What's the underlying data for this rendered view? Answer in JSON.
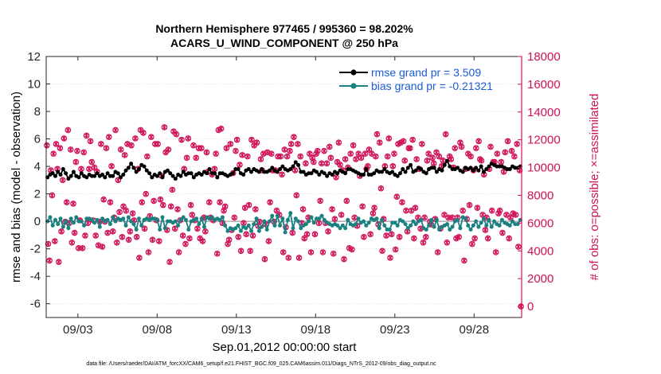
{
  "chart_data": {
    "type": "line",
    "title_line1": "Northern Hemisphere 977465 / 995360 = 98.202%",
    "title_line2": "ACARS_U_WIND_COMPONENT @ 250 hPa",
    "xlabel": "Sep.01,2012 00:00:00 start",
    "ylabel_left": "rmse and bias (model - observation)",
    "ylabel_right": "# of obs: o=possible; ×=assimilated",
    "footer": "data file: /Users/raeder/DAI/ATM_forcXX/CAM6_setup/f.e21.FHIST_BGC.f09_025.CAM6assim.011/Diags_NTrS_2012-09/obs_diag_output.nc",
    "xlim": [
      1.0,
      31.0
    ],
    "x_ticks": [
      3,
      8,
      13,
      18,
      23,
      28
    ],
    "x_tick_labels": [
      "09/03",
      "09/08",
      "09/13",
      "09/18",
      "09/23",
      "09/28"
    ],
    "ylim_left": [
      -7,
      12
    ],
    "y_ticks_left": [
      -6,
      -4,
      -2,
      0,
      2,
      4,
      6,
      8,
      10,
      12
    ],
    "ylim_right": [
      -800,
      18000
    ],
    "y_ticks_right": [
      0,
      2000,
      4000,
      6000,
      8000,
      10000,
      12000,
      14000,
      16000,
      18000
    ],
    "zero_line": 0,
    "grid": "horizontal dotted",
    "legend_position": "top-right",
    "legend": [
      "rmse grand pr = 3.509",
      "bias grand pr = -0.21321"
    ],
    "colors": {
      "rmse": "#000000",
      "bias": "#1a8080",
      "obs": "#d01058",
      "legend_text": "#1a5bd6",
      "zero": "#b4b4b4"
    },
    "series": [
      {
        "name": "rmse",
        "axis": "left",
        "values": [
          3.2,
          3.4,
          3.5,
          3.3,
          3.6,
          3.4,
          3.8,
          3.5,
          3.1,
          3.3,
          3.6,
          3.3,
          3.2,
          3.5,
          3.3,
          3.2,
          3.4,
          3.3,
          3.3,
          3.5,
          3.3,
          3.4,
          3.2,
          3.5,
          3.3,
          3.3,
          3.6,
          3.5,
          3.2,
          3.4,
          3.7,
          3.9,
          4.2,
          3.9,
          3.6,
          3.8,
          4.1,
          4.0,
          3.7,
          3.5,
          3.2,
          3.4,
          3.3,
          3.5,
          3.2,
          3.6,
          3.7,
          3.5,
          3.3,
          3.1,
          3.4,
          3.3,
          3.6,
          3.4,
          3.5,
          3.5,
          3.2,
          3.4,
          3.5,
          3.4,
          3.6,
          3.5,
          3.8,
          3.5,
          3.5,
          3.2,
          3.5,
          3.5,
          3.4,
          3.3,
          3.4,
          3.5,
          3.8,
          3.8,
          3.5,
          3.4,
          3.7,
          3.8,
          3.6,
          3.8,
          3.7,
          3.6,
          3.8,
          3.6,
          3.6,
          3.7,
          3.9,
          3.7,
          3.6,
          3.8,
          4.0,
          3.8,
          3.7,
          3.8,
          4.0,
          4.3,
          4.1,
          3.6,
          3.6,
          3.4,
          3.5,
          3.5,
          3.7,
          3.6,
          3.4,
          3.6,
          3.5,
          3.3,
          3.5,
          3.4,
          3.6,
          3.5,
          3.7,
          3.6,
          3.5,
          3.8,
          3.8,
          3.7,
          3.6,
          3.5,
          3.4,
          3.4,
          3.8,
          3.4,
          3.4,
          3.5,
          3.7,
          3.6,
          3.6,
          3.8,
          3.6,
          3.5,
          3.6,
          3.4,
          3.3,
          3.5,
          3.8,
          3.6,
          3.9,
          4.1,
          3.6,
          3.7,
          3.9,
          3.8,
          3.6,
          3.5,
          3.8,
          3.9,
          3.9,
          3.6,
          3.8,
          3.7,
          4.1,
          4.4,
          4.0,
          3.8,
          3.8,
          3.9,
          3.7,
          3.6,
          3.9,
          3.8,
          3.9,
          3.7,
          3.9,
          3.7,
          4.0,
          3.6,
          3.8,
          4.0,
          4.2,
          4.1,
          4.0,
          4.0,
          4.0,
          3.9,
          3.8,
          3.8,
          4.0,
          3.9,
          3.9,
          4.0
        ]
      },
      {
        "name": "bias",
        "axis": "left",
        "values": [
          0.0,
          0.3,
          -0.3,
          0.1,
          -0.2,
          0.2,
          -0.4,
          0.0,
          -0.5,
          0.2,
          -0.1,
          0.3,
          0.0,
          0.0,
          -0.3,
          0.2,
          0.2,
          0.1,
          -0.1,
          0.1,
          -0.4,
          0.2,
          0.0,
          0.1,
          -0.2,
          0.3,
          0.0,
          0.2,
          0.1,
          0.2,
          -0.3,
          0.3,
          0.0,
          -0.2,
          -0.6,
          0.2,
          -0.3,
          0.1,
          0.2,
          0.1,
          0.2,
          0.2,
          0.1,
          -0.6,
          0.3,
          -0.5,
          0.0,
          0.0,
          -0.1,
          0.0,
          -0.3,
          0.1,
          0.3,
          0.1,
          -0.6,
          0.0,
          0.1,
          0.2,
          -0.2,
          0.2,
          -0.4,
          0.3,
          0.2,
          0.3,
          0.1,
          0.2,
          0.1,
          0.3,
          -0.3,
          -0.7,
          -0.5,
          -0.6,
          -0.5,
          -0.3,
          -0.7,
          -0.4,
          -0.5,
          -0.3,
          -0.7,
          -0.2,
          0.2,
          -0.7,
          -0.4,
          0.0,
          -0.6,
          0.0,
          0.4,
          -0.3,
          0.4,
          -0.3,
          0.2,
          -0.8,
          0.1,
          0.6,
          -0.5,
          0.2,
          0.0,
          -0.5,
          -0.3,
          -0.2,
          0.0,
          0.3,
          -0.1,
          0.2,
          0.2,
          0.4,
          0.1,
          -0.1,
          -0.2,
          -0.3,
          -0.2,
          -0.3,
          -0.5,
          -0.3,
          -0.5,
          0.1,
          -0.2,
          -0.3,
          -0.2,
          0.2,
          -0.1,
          0.0,
          -0.3,
          -0.1,
          0.2,
          0.1,
          0.2,
          -0.5,
          0.1,
          -0.3,
          -0.6,
          -0.6,
          -0.1,
          -0.1,
          -0.3,
          0.1,
          0.0,
          -0.2,
          -0.5,
          -0.3,
          0.0,
          -0.2,
          0.0,
          0.1,
          -0.5,
          -0.6,
          -0.3,
          0.1,
          -0.4,
          0.1,
          -0.6,
          -0.4,
          -0.3,
          -0.2,
          -0.6,
          -0.4,
          0.0,
          0.1,
          -0.5,
          0.3,
          0.2,
          -0.3,
          -0.6,
          -0.3,
          0.0,
          -0.4,
          -0.1,
          0.2,
          -0.3,
          0.1,
          -0.4,
          0.0,
          -0.2,
          -0.3,
          0.1,
          -0.1,
          -0.2,
          -0.3,
          0.0,
          -0.2,
          -0.2,
          0.1
        ]
      },
      {
        "name": "obs_count",
        "axis": "right",
        "values": [
          11600,
          4500,
          3300,
          9800,
          8000,
          11000,
          4700,
          11700,
          9900,
          3200,
          11400,
          5400,
          9100,
          12100,
          6100,
          7500,
          12700,
          6000,
          11300,
          4600,
          7400,
          5300,
          10400,
          11200,
          4200,
          6200,
          9900,
          4200,
          11100,
          5100,
          12300,
          6000,
          9900,
          11900,
          10400,
          6200,
          10000,
          5100,
          9700,
          4400,
          6100,
          11700,
          4300,
          7700,
          6100,
          11400,
          5300,
          12200,
          7500,
          10100,
          5400,
          6400,
          12700,
          4600,
          9100,
          6800,
          11300,
          5000,
          7200,
          10900,
          6900,
          11700,
          4800,
          5400,
          11600,
          6700,
          6200,
          12100,
          5000,
          9900,
          3500,
          12700,
          7500,
          12500,
          5600,
          8100,
          10800,
          3900,
          6500,
          12200,
          4800,
          7600,
          11700,
          6200,
          11700,
          4700,
          7700,
          9400,
          7300,
          12900,
          11100,
          5500,
          11300,
          3200,
          7200,
          8400,
          12600,
          5600,
          12400,
          7000,
          3900,
          6200,
          12000,
          5100,
          9900,
          4500,
          10700,
          12100,
          4900,
          7300,
          6600,
          11600,
          6200,
          10700,
          5600,
          11400,
          4900,
          11400,
          4700,
          6400,
          5400,
          11100,
          9700,
          7500,
          6400,
          9500,
          6200,
          9900,
          11000,
          3800,
          12700,
          7500,
          12800,
          6000,
          6900,
          7200,
          11400,
          4500,
          4800,
          11700,
          5500,
          9600,
          6400,
          11200,
          12000,
          5000,
          10200,
          4000,
          10900,
          6000,
          7100,
          5200,
          10800,
          7300,
          4000,
          12000,
          5100,
          11600,
          7000,
          11800,
          5800,
          6100,
          10600,
          9800,
          11000,
          3400,
          5900,
          11100,
          4700,
          7500,
          11000,
          9800,
          6100,
          9800,
          6900,
          10800,
          6600,
          10800,
          9500,
          3900,
          11300,
          5700,
          10800,
          3500,
          11200,
          11700,
          5300,
          12200,
          9800,
          8000,
          11700,
          3500,
          10800,
          6000,
          7000,
          4900,
          10300,
          5200,
          6400,
          11000,
          3900,
          10700,
          10400,
          5200,
          11000,
          11200,
          6000,
          7600,
          10300,
          3900,
          11200,
          6000,
          10300,
          5400,
          11500,
          10700,
          7000,
          3800,
          6300,
          9300,
          10400,
          11800,
          10200,
          6600,
          9800,
          3400,
          10600,
          7600,
          10000,
          4200,
          11000,
          4100,
          11600,
          6400,
          10600,
          5800,
          11000,
          9400,
          10700,
          7200,
          5000,
          11000,
          9900,
          10100,
          11300,
          5200,
          11000,
          6700,
          7100,
          10800,
          12400,
          5900,
          11800,
          8500,
          4000,
          6300,
          10100,
          5100,
          10800,
          12100,
          3500,
          5200,
          10100,
          11000,
          4100,
          7900,
          11700,
          5000,
          11800,
          7500,
          11900,
          10500,
          6900,
          5400,
          11400,
          11400,
          6900,
          12000,
          4900,
          7100,
          10600,
          6400,
          9900,
          5600,
          11700,
          4600,
          6400,
          5000,
          10500,
          11000,
          6100,
          5900,
          10700,
          10300,
          6300,
          11100,
          3900,
          10800,
          5600,
          10100,
          10500,
          6600,
          12400,
          4600,
          6400,
          10800,
          10600,
          6400,
          10000,
          11400,
          4900,
          6400,
          5000,
          11800,
          11500,
          6900,
          3300,
          9900,
          6300,
          11000,
          7300,
          10800,
          4500,
          9800,
          4900,
          11400,
          7100,
          11900,
          10600,
          10500,
          6600,
          9500,
          5500,
          6400,
          4900,
          9900,
          11500,
          6900,
          10400,
          10400,
          3900,
          11000,
          6700,
          6900,
          10400,
          5300,
          9700,
          11100,
          6600,
          11900,
          4900,
          6400,
          11200,
          6700,
          10800,
          6600,
          11700,
          4300,
          9800,
          0
        ]
      }
    ]
  }
}
